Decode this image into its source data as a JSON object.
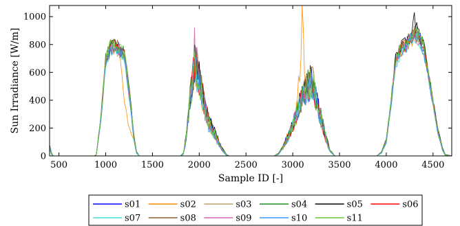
{
  "chart_data": {
    "type": "line",
    "xlabel": "Sample ID [-]",
    "ylabel": "Sun Irradiance [W/m]",
    "xlim": [
      400,
      4700
    ],
    "ylim": [
      0,
      1080
    ],
    "xticks": [
      500,
      1000,
      1500,
      2000,
      2500,
      3000,
      3500,
      4000,
      4500
    ],
    "yticks": [
      0,
      200,
      400,
      600,
      800,
      1000
    ],
    "grid": false,
    "legend": {
      "placement": "bottom-outside",
      "columns": 6
    },
    "envelope_keypoints": {
      "description_note": "approximate envelope of each day block",
      "blocks": [
        {
          "x": [
            400,
            420,
            440,
            880,
            900,
            950,
            1000,
            1050,
            1100,
            1150,
            1200,
            1250,
            1300,
            1330,
            1360,
            1800
          ]
        },
        {
          "x": [
            1800,
            1830,
            1860,
            1900,
            1950,
            2000,
            2050,
            2100,
            2150,
            2200,
            2250,
            2290,
            2320,
            2800
          ]
        },
        {
          "x": [
            2800,
            2850,
            2900,
            2950,
            3000,
            3050,
            3100,
            3150,
            3200,
            3250,
            3300,
            3350,
            3400,
            3450,
            3900
          ]
        },
        {
          "x": [
            3900,
            3950,
            4000,
            4050,
            4100,
            4150,
            4200,
            4250,
            4300,
            4350,
            4400,
            4450,
            4500,
            4550,
            4600,
            4630,
            4700
          ]
        }
      ]
    },
    "series": [
      {
        "name": "s01",
        "color": "#0000ff",
        "values": [
          [
            80,
            20,
            0,
            0,
            10,
            300,
            700,
            800,
            810,
            790,
            750,
            500,
            150,
            30,
            0,
            0
          ],
          [
            0,
            20,
            150,
            450,
            700,
            600,
            420,
            280,
            200,
            120,
            50,
            10,
            0,
            0
          ],
          [
            0,
            20,
            80,
            150,
            250,
            350,
            450,
            520,
            600,
            450,
            300,
            150,
            40,
            0,
            0
          ],
          [
            0,
            30,
            120,
            400,
            700,
            780,
            820,
            860,
            900,
            880,
            800,
            600,
            400,
            200,
            60,
            10,
            0
          ]
        ]
      },
      {
        "name": "s02",
        "color": "#ff8c00",
        "values": [
          [
            60,
            15,
            0,
            0,
            10,
            280,
            690,
            790,
            800,
            780,
            400,
            200,
            120,
            20,
            0,
            0
          ],
          [
            0,
            15,
            140,
            440,
            690,
            590,
            410,
            260,
            190,
            110,
            40,
            5,
            0,
            0
          ],
          [
            0,
            15,
            70,
            160,
            260,
            380,
            1070,
            500,
            560,
            430,
            290,
            140,
            30,
            0,
            0
          ],
          [
            0,
            25,
            110,
            380,
            690,
            770,
            810,
            840,
            880,
            870,
            790,
            590,
            390,
            190,
            50,
            5,
            0
          ]
        ]
      },
      {
        "name": "s03",
        "color": "#b8a06a",
        "values": [
          [
            55,
            12,
            0,
            0,
            8,
            270,
            680,
            785,
            795,
            770,
            720,
            450,
            130,
            20,
            0,
            0
          ],
          [
            0,
            12,
            130,
            430,
            680,
            580,
            400,
            250,
            180,
            100,
            35,
            5,
            0,
            0
          ],
          [
            0,
            12,
            65,
            145,
            240,
            340,
            440,
            510,
            590,
            440,
            290,
            140,
            30,
            0,
            0
          ],
          [
            0,
            22,
            100,
            370,
            680,
            760,
            800,
            850,
            890,
            860,
            780,
            580,
            380,
            180,
            45,
            5,
            0
          ]
        ]
      },
      {
        "name": "s04",
        "color": "#228b22",
        "values": [
          [
            70,
            18,
            0,
            0,
            10,
            290,
            710,
            805,
            815,
            795,
            760,
            520,
            160,
            30,
            0,
            0
          ],
          [
            0,
            18,
            145,
            460,
            710,
            610,
            430,
            290,
            210,
            130,
            55,
            12,
            0,
            0
          ],
          [
            0,
            18,
            75,
            155,
            255,
            355,
            455,
            525,
            610,
            460,
            310,
            160,
            45,
            0,
            0
          ],
          [
            0,
            28,
            115,
            390,
            710,
            790,
            830,
            870,
            910,
            890,
            810,
            610,
            410,
            210,
            55,
            8,
            0
          ]
        ]
      },
      {
        "name": "s05",
        "color": "#000000",
        "values": [
          [
            75,
            20,
            0,
            0,
            10,
            295,
            705,
            800,
            812,
            792,
            755,
            510,
            155,
            28,
            0,
            0
          ],
          [
            0,
            20,
            148,
            455,
            705,
            605,
            425,
            285,
            205,
            125,
            52,
            10,
            0,
            0
          ],
          [
            0,
            20,
            78,
            152,
            252,
            352,
            452,
            522,
            605,
            455,
            305,
            155,
            42,
            0,
            0
          ],
          [
            0,
            30,
            118,
            395,
            705,
            785,
            825,
            865,
            1000,
            885,
            805,
            605,
            405,
            205,
            58,
            10,
            0
          ]
        ]
      },
      {
        "name": "s06",
        "color": "#ff0000",
        "values": [
          [
            65,
            16,
            0,
            0,
            9,
            285,
            695,
            795,
            805,
            785,
            745,
            490,
            145,
            25,
            0,
            0
          ],
          [
            0,
            16,
            138,
            445,
            695,
            595,
            415,
            275,
            195,
            115,
            45,
            8,
            0,
            0
          ],
          [
            0,
            16,
            72,
            148,
            248,
            348,
            448,
            518,
            598,
            448,
            298,
            148,
            38,
            0,
            0
          ],
          [
            0,
            26,
            112,
            385,
            695,
            775,
            815,
            855,
            895,
            875,
            795,
            595,
            395,
            195,
            52,
            6,
            0
          ]
        ]
      },
      {
        "name": "s07",
        "color": "#40e0d0",
        "values": [
          [
            50,
            10,
            0,
            0,
            8,
            265,
            675,
            780,
            790,
            765,
            715,
            440,
            125,
            18,
            0,
            0
          ],
          [
            0,
            10,
            128,
            425,
            675,
            575,
            395,
            245,
            175,
            95,
            32,
            4,
            0,
            0
          ],
          [
            0,
            10,
            62,
            142,
            238,
            338,
            438,
            508,
            588,
            438,
            288,
            138,
            28,
            0,
            0
          ],
          [
            0,
            20,
            98,
            365,
            675,
            755,
            795,
            845,
            885,
            855,
            775,
            575,
            375,
            175,
            42,
            4,
            0
          ]
        ]
      },
      {
        "name": "s08",
        "color": "#8b5a2b",
        "values": [
          [
            72,
            19,
            0,
            0,
            10,
            292,
            702,
            802,
            812,
            790,
            752,
            505,
            152,
            27,
            0,
            0
          ],
          [
            0,
            19,
            146,
            452,
            702,
            602,
            422,
            282,
            202,
            122,
            50,
            9,
            0,
            0
          ],
          [
            0,
            19,
            76,
            150,
            250,
            350,
            450,
            520,
            602,
            452,
            302,
            152,
            40,
            0,
            0
          ],
          [
            0,
            29,
            116,
            392,
            702,
            782,
            822,
            862,
            902,
            882,
            802,
            602,
            402,
            202,
            56,
            9,
            0
          ]
        ]
      },
      {
        "name": "s09",
        "color": "#cc66aa",
        "values": [
          [
            58,
            13,
            0,
            0,
            8,
            272,
            682,
            787,
            797,
            772,
            722,
            452,
            132,
            21,
            0,
            0
          ],
          [
            0,
            13,
            132,
            432,
            830,
            582,
            402,
            252,
            182,
            102,
            37,
            5,
            0,
            0
          ],
          [
            0,
            13,
            66,
            146,
            242,
            342,
            442,
            512,
            592,
            442,
            292,
            142,
            32,
            0,
            0
          ],
          [
            0,
            23,
            102,
            372,
            682,
            762,
            802,
            852,
            892,
            862,
            782,
            582,
            382,
            182,
            46,
            5,
            0
          ]
        ]
      },
      {
        "name": "s10",
        "color": "#3399ff",
        "values": [
          [
            52,
            11,
            0,
            0,
            8,
            268,
            678,
            782,
            792,
            768,
            718,
            445,
            128,
            19,
            0,
            0
          ],
          [
            0,
            11,
            130,
            428,
            678,
            578,
            398,
            248,
            178,
            98,
            34,
            4,
            0,
            0
          ],
          [
            0,
            11,
            64,
            144,
            240,
            340,
            440,
            510,
            590,
            440,
            290,
            140,
            30,
            0,
            0
          ],
          [
            0,
            21,
            99,
            368,
            678,
            758,
            798,
            848,
            888,
            858,
            778,
            578,
            378,
            178,
            44,
            4,
            0
          ]
        ]
      },
      {
        "name": "s11",
        "color": "#66cc33",
        "values": [
          [
            68,
            17,
            0,
            0,
            9,
            288,
            698,
            850,
            808,
            788,
            748,
            495,
            148,
            26,
            0,
            0
          ],
          [
            0,
            17,
            140,
            448,
            698,
            598,
            418,
            278,
            198,
            118,
            48,
            9,
            0,
            0
          ],
          [
            0,
            17,
            73,
            149,
            249,
            349,
            449,
            519,
            600,
            449,
            299,
            149,
            39,
            0,
            0
          ],
          [
            0,
            27,
            113,
            388,
            698,
            778,
            818,
            858,
            898,
            878,
            798,
            598,
            398,
            198,
            54,
            7,
            0
          ]
        ]
      }
    ]
  }
}
